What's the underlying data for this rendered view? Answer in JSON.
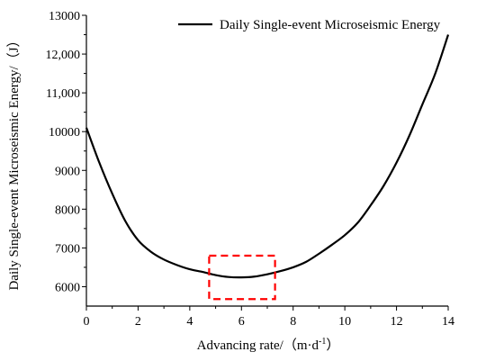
{
  "chart_data": {
    "type": "line",
    "xlabel": "Advancing rate/（m·d",
    "xlabel_sup": "-1",
    "xlabel_suffix": "）",
    "ylabel": "Daily Single-event Microseismic Energy/（J）",
    "xlim": [
      0,
      14
    ],
    "ylim": [
      5500,
      13000
    ],
    "x_ticks": [
      0,
      2,
      4,
      6,
      8,
      10,
      12,
      14
    ],
    "x_tick_labels": [
      "0",
      "2",
      "4",
      "6",
      "8",
      "10",
      "12",
      "14"
    ],
    "y_ticks": [
      6000,
      7000,
      8000,
      9000,
      10000,
      11000,
      12000,
      13000
    ],
    "y_tick_labels": [
      "6000",
      "7000",
      "8000",
      "9000",
      "10000",
      "11,000",
      "12,000",
      "13000"
    ],
    "legend_position": "top-right",
    "series": [
      {
        "name": "Daily Single-event Microseismic Energy",
        "color": "#000000",
        "x": [
          0,
          0.5,
          1,
          1.5,
          2,
          2.5,
          3,
          3.5,
          4,
          4.5,
          5,
          5.5,
          6,
          6.5,
          7,
          7.5,
          8,
          8.5,
          9,
          9.5,
          10,
          10.5,
          11,
          11.5,
          12,
          12.5,
          13,
          13.5,
          14
        ],
        "y": [
          10100,
          9200,
          8400,
          7700,
          7200,
          6900,
          6700,
          6560,
          6450,
          6380,
          6300,
          6250,
          6240,
          6260,
          6320,
          6400,
          6500,
          6640,
          6850,
          7080,
          7330,
          7650,
          8100,
          8600,
          9200,
          9900,
          10700,
          11500,
          12500
        ]
      }
    ],
    "annotations": [
      {
        "type": "dashed-rectangle",
        "color": "#ff0000",
        "x_range": [
          4.75,
          7.3
        ],
        "y_range": [
          5680,
          6800
        ]
      }
    ]
  }
}
